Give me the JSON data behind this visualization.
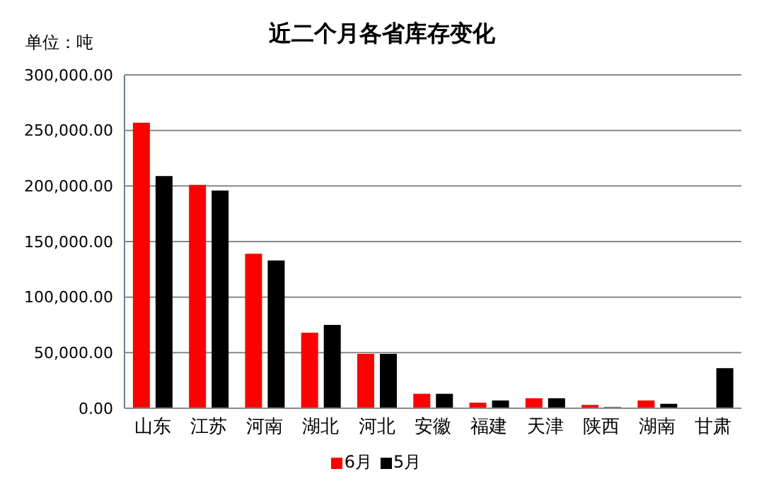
{
  "chart_data": {
    "type": "bar",
    "title": "近二个月各省库存变化",
    "ylabel": "单位：吨",
    "categories": [
      "山东",
      "江苏",
      "河南",
      "湖北",
      "河北",
      "安徽",
      "福建",
      "天津",
      "陕西",
      "湖南",
      "甘肃"
    ],
    "series": [
      {
        "name": "6月",
        "color": "#ff0000",
        "values": [
          257000,
          201000,
          139000,
          68000,
          49000,
          13000,
          5000,
          9000,
          3000,
          7000,
          0
        ]
      },
      {
        "name": "5月",
        "color": "#000000",
        "values": [
          209000,
          196000,
          133000,
          75000,
          49000,
          13000,
          7000,
          9000,
          1000,
          4000,
          36000
        ]
      }
    ],
    "ylim": [
      0,
      300000
    ],
    "yticks": [
      {
        "value": 0,
        "label": "0.00"
      },
      {
        "value": 50000,
        "label": "50,000.00"
      },
      {
        "value": 100000,
        "label": "100,000.00"
      },
      {
        "value": 150000,
        "label": "150,000.00"
      },
      {
        "value": 200000,
        "label": "200,000.00"
      },
      {
        "value": 250000,
        "label": "250,000.00"
      },
      {
        "value": 300000,
        "label": "300,000.00"
      }
    ],
    "grid": "y",
    "legend": "bottom"
  }
}
